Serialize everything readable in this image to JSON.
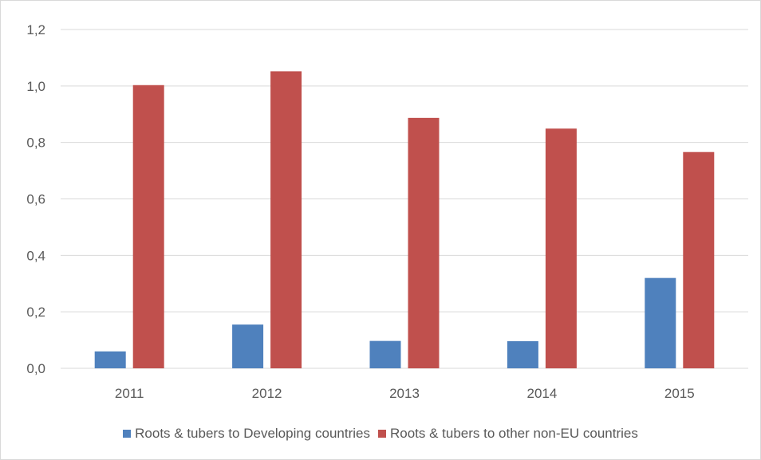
{
  "chart_data": {
    "type": "bar",
    "title": "",
    "xlabel": "",
    "ylabel": "",
    "categories": [
      "2011",
      "2012",
      "2013",
      "2014",
      "2015"
    ],
    "series": [
      {
        "name": "Roots & tubers to Developing countries",
        "color": "#4f81bd",
        "values": [
          0.06,
          0.155,
          0.097,
          0.096,
          0.32
        ]
      },
      {
        "name": "Roots & tubers to other non-EU countries",
        "color": "#c0504d",
        "values": [
          1.003,
          1.052,
          0.887,
          0.849,
          0.766
        ]
      }
    ],
    "ylim": [
      0,
      1.2
    ],
    "yticks": [
      "0,0",
      "0,2",
      "0,4",
      "0,6",
      "0,8",
      "1,0",
      "1,2"
    ],
    "grid": true,
    "gridColor": "#d9d9d9",
    "legend_position": "bottom"
  }
}
